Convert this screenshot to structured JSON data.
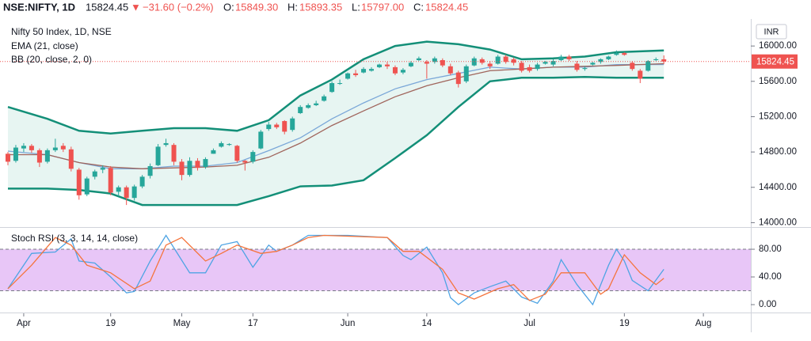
{
  "header": {
    "symbol": "NSE:NIFTY, 1D",
    "last": "15824.45",
    "arrow": "▼",
    "change": "−31.60 (−0.2%)",
    "open_label": "O:",
    "open": "15849.30",
    "high_label": "H:",
    "high": "15893.35",
    "low_label": "L:",
    "low": "15797.00",
    "close_label": "C:",
    "close": "15824.45",
    "currency": "INR"
  },
  "chart_data": [
    {
      "type": "candlestick",
      "title": "Nifty 50 Index, 1D, NSE",
      "up_color": "#26a69a",
      "down_color": "#ef5350",
      "xlim": [
        -1,
        94
      ],
      "ylim": [
        13950,
        16270
      ],
      "yticks": [
        {
          "value": 16000,
          "label": "16000.00"
        },
        {
          "value": 15600,
          "label": "15600.00"
        },
        {
          "value": 15200,
          "label": "15200.00"
        },
        {
          "value": 14800,
          "label": "14800.00"
        },
        {
          "value": 14400,
          "label": "14400.00"
        },
        {
          "value": 14000,
          "label": "14000.00"
        }
      ],
      "grid": false,
      "candles": [
        [
          14780,
          14800,
          14650,
          14690
        ],
        [
          14700,
          14880,
          14680,
          14850
        ],
        [
          14840,
          14900,
          14800,
          14870
        ],
        [
          14870,
          14890,
          14790,
          14820
        ],
        [
          14820,
          14840,
          14630,
          14680
        ],
        [
          14690,
          14840,
          14670,
          14820
        ],
        [
          14820,
          14950,
          14800,
          14850
        ],
        [
          14870,
          14900,
          14800,
          14830
        ],
        [
          14830,
          14860,
          14580,
          14610
        ],
        [
          14600,
          14620,
          14260,
          14310
        ],
        [
          14320,
          14520,
          14300,
          14500
        ],
        [
          14520,
          14600,
          14490,
          14580
        ],
        [
          14600,
          14650,
          14560,
          14620
        ],
        [
          14620,
          14640,
          14310,
          14340
        ],
        [
          14350,
          14420,
          14300,
          14400
        ],
        [
          14400,
          14420,
          14200,
          14280
        ],
        [
          14280,
          14430,
          14250,
          14410
        ],
        [
          14410,
          14540,
          14390,
          14520
        ],
        [
          14530,
          14670,
          14500,
          14640
        ],
        [
          14650,
          14890,
          14640,
          14860
        ],
        [
          14880,
          14950,
          14860,
          14900
        ],
        [
          14880,
          14900,
          14650,
          14690
        ],
        [
          14690,
          14720,
          14480,
          14540
        ],
        [
          14540,
          14740,
          14520,
          14700
        ],
        [
          14700,
          14730,
          14590,
          14620
        ],
        [
          14630,
          14740,
          14610,
          14720
        ],
        [
          14780,
          14840,
          14780,
          14820
        ],
        [
          14860,
          14920,
          14850,
          14900
        ],
        [
          14880,
          14900,
          14870,
          14890
        ],
        [
          14870,
          14880,
          14680,
          14700
        ],
        [
          14700,
          14710,
          14590,
          14680
        ],
        [
          14690,
          14820,
          14670,
          14800
        ],
        [
          14840,
          15050,
          14830,
          15030
        ],
        [
          15060,
          15140,
          15040,
          15110
        ],
        [
          15110,
          15130,
          15060,
          15080
        ],
        [
          15150,
          15160,
          15000,
          15030
        ],
        [
          15050,
          15200,
          15030,
          15180
        ],
        [
          15240,
          15330,
          15230,
          15310
        ],
        [
          15300,
          15350,
          15290,
          15330
        ],
        [
          15330,
          15380,
          15320,
          15350
        ],
        [
          15380,
          15450,
          15370,
          15430
        ],
        [
          15480,
          15600,
          15470,
          15580
        ],
        [
          15580,
          15620,
          15560,
          15580
        ],
        [
          15630,
          15700,
          15620,
          15690
        ],
        [
          15690,
          15730,
          15650,
          15670
        ],
        [
          15700,
          15760,
          15690,
          15740
        ],
        [
          15720,
          15760,
          15710,
          15740
        ],
        [
          15760,
          15800,
          15750,
          15790
        ],
        [
          15790,
          15820,
          15740,
          15770
        ],
        [
          15760,
          15780,
          15670,
          15690
        ],
        [
          15700,
          15750,
          15680,
          15730
        ],
        [
          15770,
          15830,
          15760,
          15810
        ],
        [
          15840,
          15880,
          15830,
          15860
        ],
        [
          15820,
          15840,
          15630,
          15800
        ],
        [
          15820,
          15880,
          15800,
          15860
        ],
        [
          15840,
          15860,
          15760,
          15780
        ],
        [
          15770,
          15800,
          15670,
          15690
        ],
        [
          15700,
          15720,
          15530,
          15570
        ],
        [
          15600,
          15790,
          15580,
          15770
        ],
        [
          15780,
          15880,
          15770,
          15860
        ],
        [
          15850,
          15870,
          15790,
          15810
        ],
        [
          15800,
          15830,
          15740,
          15770
        ],
        [
          15800,
          15900,
          15790,
          15880
        ],
        [
          15880,
          15900,
          15800,
          15820
        ],
        [
          15850,
          15870,
          15780,
          15810
        ],
        [
          15810,
          15830,
          15700,
          15720
        ],
        [
          15760,
          15790,
          15700,
          15720
        ],
        [
          15740,
          15810,
          15720,
          15790
        ],
        [
          15800,
          15830,
          15790,
          15820
        ],
        [
          15790,
          15850,
          15770,
          15830
        ],
        [
          15840,
          15900,
          15830,
          15880
        ],
        [
          15880,
          15900,
          15830,
          15850
        ],
        [
          15800,
          15830,
          15710,
          15730
        ],
        [
          15740,
          15770,
          15720,
          15750
        ],
        [
          15790,
          15820,
          15780,
          15810
        ],
        [
          15820,
          15860,
          15800,
          15850
        ],
        [
          15850,
          15890,
          15840,
          15880
        ],
        [
          15900,
          15950,
          15890,
          15920
        ],
        [
          15920,
          15930,
          15890,
          15900
        ],
        [
          15810,
          15830,
          15720,
          15740
        ],
        [
          15720,
          15740,
          15580,
          15630
        ],
        [
          15720,
          15840,
          15710,
          15830
        ],
        [
          15840,
          15870,
          15830,
          15850
        ],
        [
          15849.3,
          15893.35,
          15797,
          15824.45
        ]
      ],
      "ema": {
        "name": "EMA (21, close)",
        "color": "#a0655c",
        "x": [
          0,
          5,
          9,
          13,
          17,
          21,
          25,
          29,
          33,
          37,
          41,
          45,
          49,
          53,
          57,
          61,
          65,
          69,
          73,
          77,
          83
        ],
        "values": [
          14770,
          14770,
          14680,
          14630,
          14610,
          14620,
          14630,
          14650,
          14740,
          14900,
          15100,
          15265,
          15425,
          15550,
          15640,
          15720,
          15740,
          15760,
          15770,
          15780,
          15800
        ]
      },
      "bb": {
        "name": "BB (20, close, 2, 0)",
        "color": "#138f78",
        "basis_color": "#7aa7d8",
        "fill": "#e7f5f2",
        "x": [
          0,
          5,
          9,
          13,
          17,
          21,
          25,
          29,
          33,
          37,
          41,
          45,
          49,
          53,
          57,
          61,
          65,
          69,
          73,
          77,
          83
        ],
        "upper": [
          15310,
          15175,
          15040,
          15010,
          15040,
          15070,
          15070,
          15040,
          15160,
          15440,
          15620,
          15850,
          16000,
          16050,
          16020,
          15960,
          15850,
          15860,
          15880,
          15930,
          15950
        ],
        "basis": [
          14810,
          14770,
          14680,
          14610,
          14610,
          14640,
          14640,
          14680,
          14815,
          14960,
          15175,
          15355,
          15515,
          15620,
          15690,
          15760,
          15740,
          15760,
          15760,
          15790,
          15790
        ],
        "lower": [
          14385,
          14385,
          14370,
          14330,
          14200,
          14200,
          14200,
          14200,
          14300,
          14410,
          14420,
          14480,
          14730,
          14990,
          15310,
          15600,
          15640,
          15640,
          15650,
          15640,
          15640
        ]
      }
    },
    {
      "type": "line",
      "title": "Stoch RSI (3, 3, 14, 14, close)",
      "xlim": [
        -1,
        94
      ],
      "ylim": [
        -11.4,
        110.9
      ],
      "yticks": [
        {
          "value": 80,
          "label": "80.00"
        },
        {
          "value": 40,
          "label": "40.00"
        },
        {
          "value": 0,
          "label": "0.00"
        }
      ],
      "band": [
        20,
        80
      ],
      "band_color": "#e8c6f7",
      "xticks": [
        {
          "value": 2,
          "label": "Apr"
        },
        {
          "value": 13,
          "label": "19"
        },
        {
          "value": 22,
          "label": "May"
        },
        {
          "value": 31,
          "label": "17"
        },
        {
          "value": 43,
          "label": "Jun"
        },
        {
          "value": 53,
          "label": "14"
        },
        {
          "value": 66,
          "label": "Jul"
        },
        {
          "value": 78,
          "label": "19"
        },
        {
          "value": 88,
          "label": "Aug"
        }
      ],
      "series": [
        {
          "color": "#4ea4e4",
          "x": [
            0,
            3,
            6,
            8,
            9,
            11,
            13,
            15,
            16,
            18,
            20,
            23,
            25,
            27,
            29,
            31,
            33,
            34,
            36,
            38,
            40,
            43,
            48,
            50,
            51,
            53,
            55,
            56,
            57,
            59,
            61,
            63,
            65,
            67,
            69,
            70,
            72,
            74,
            76,
            77,
            78,
            79,
            81,
            83
          ],
          "values": [
            23,
            74,
            76,
            95,
            63,
            60,
            40,
            17,
            19,
            63,
            100,
            46,
            46,
            86,
            91,
            54,
            86,
            77,
            86,
            100,
            100,
            100,
            97,
            71,
            65,
            83,
            46,
            10,
            0,
            17,
            26,
            34,
            11,
            2,
            34,
            65,
            29,
            0,
            57,
            80,
            63,
            35,
            20,
            51
          ]
        },
        {
          "color": "#f5743c",
          "x": [
            0,
            3,
            6,
            8,
            10,
            13,
            16,
            18,
            20,
            22,
            25,
            27,
            29,
            32,
            34,
            36,
            38,
            40,
            48,
            50,
            52,
            55,
            57,
            59,
            62,
            64,
            66,
            68,
            70,
            73,
            75,
            76,
            78,
            80,
            82,
            83
          ],
          "values": [
            23,
            57,
            97,
            86,
            57,
            46,
            23,
            34,
            86,
            97,
            63,
            74,
            86,
            74,
            77,
            86,
            97,
            100,
            97,
            77,
            77,
            51,
            17,
            8,
            23,
            29,
            6,
            15,
            46,
            46,
            15,
            23,
            72,
            46,
            29,
            38
          ]
        }
      ]
    }
  ]
}
